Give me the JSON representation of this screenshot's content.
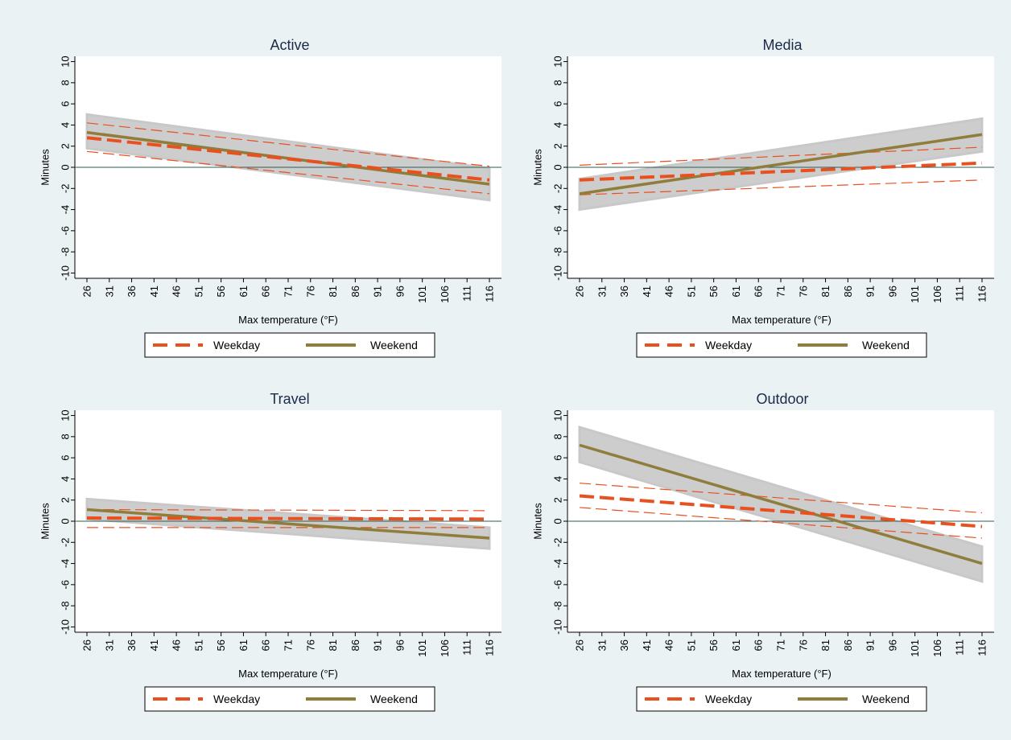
{
  "colors": {
    "figure_bg": "#eaf2f3",
    "plot_bg": "#ffffff",
    "weekday": "#e8501f",
    "weekend": "#8f7d3c",
    "ci_band": "#c8c8c8",
    "zero_line": "#2e5e52"
  },
  "chart_data": [
    {
      "type": "line",
      "title": "Active",
      "xlabel": "Max temperature (°F)",
      "ylabel": "Minutes",
      "x": [
        26,
        31,
        36,
        41,
        46,
        51,
        56,
        61,
        66,
        71,
        76,
        81,
        86,
        91,
        96,
        101,
        106,
        111,
        116
      ],
      "y_ticks": [
        -10,
        -8,
        -6,
        -4,
        -2,
        0,
        2,
        4,
        6,
        8,
        10
      ],
      "ylim": [
        -10.5,
        10.5
      ],
      "reference_line_y": 0,
      "legend": {
        "position": "bottom",
        "entries": [
          "Weekday",
          "Weekend"
        ]
      },
      "series": [
        {
          "name": "Weekday",
          "style": "dashed",
          "x_range": [
            26,
            116
          ],
          "y_range": [
            2.8,
            -1.2
          ],
          "ci_lower": [
            1.5,
            -2.5
          ],
          "ci_upper": [
            4.2,
            0.1
          ]
        },
        {
          "name": "Weekend",
          "style": "solid",
          "x_range": [
            26,
            116
          ],
          "y_range": [
            3.3,
            -1.6
          ],
          "ci_lower": [
            1.8,
            -3.1
          ],
          "ci_upper": [
            5.0,
            -0.1
          ]
        }
      ]
    },
    {
      "type": "line",
      "title": "Media",
      "xlabel": "Max temperature (°F)",
      "ylabel": "Minutes",
      "x": [
        26,
        31,
        36,
        41,
        46,
        51,
        56,
        61,
        66,
        71,
        76,
        81,
        86,
        91,
        96,
        101,
        106,
        111,
        116
      ],
      "y_ticks": [
        -10,
        -8,
        -6,
        -4,
        -2,
        0,
        2,
        4,
        6,
        8,
        10
      ],
      "ylim": [
        -10.5,
        10.5
      ],
      "reference_line_y": 0,
      "legend": {
        "position": "bottom",
        "entries": [
          "Weekday",
          "Weekend"
        ]
      },
      "series": [
        {
          "name": "Weekday",
          "style": "dashed",
          "x_range": [
            26,
            116
          ],
          "y_range": [
            -1.2,
            0.4
          ],
          "ci_lower": [
            -2.6,
            -1.2
          ],
          "ci_upper": [
            0.2,
            1.9
          ]
        },
        {
          "name": "Weekend",
          "style": "solid",
          "x_range": [
            26,
            116
          ],
          "y_range": [
            -2.5,
            3.1
          ],
          "ci_lower": [
            -4.0,
            1.5
          ],
          "ci_upper": [
            -1.1,
            4.6
          ]
        }
      ]
    },
    {
      "type": "line",
      "title": "Travel",
      "xlabel": "Max temperature (°F)",
      "ylabel": "Minutes",
      "x": [
        26,
        31,
        36,
        41,
        46,
        51,
        56,
        61,
        66,
        71,
        76,
        81,
        86,
        91,
        96,
        101,
        106,
        111,
        116
      ],
      "y_ticks": [
        -10,
        -8,
        -6,
        -4,
        -2,
        0,
        2,
        4,
        6,
        8,
        10
      ],
      "ylim": [
        -10.5,
        10.5
      ],
      "reference_line_y": 0,
      "legend": {
        "position": "bottom",
        "entries": [
          "Weekday",
          "Weekend"
        ]
      },
      "series": [
        {
          "name": "Weekday",
          "style": "dashed",
          "x_range": [
            26,
            116
          ],
          "y_range": [
            0.3,
            0.2
          ],
          "ci_lower": [
            -0.6,
            -0.6
          ],
          "ci_upper": [
            1.1,
            1.0
          ]
        },
        {
          "name": "Weekend",
          "style": "solid",
          "x_range": [
            26,
            116
          ],
          "y_range": [
            1.1,
            -1.6
          ],
          "ci_lower": [
            0.2,
            -2.6
          ],
          "ci_upper": [
            2.1,
            -0.6
          ]
        }
      ]
    },
    {
      "type": "line",
      "title": "Outdoor",
      "xlabel": "Max temperature (°F)",
      "ylabel": "Minutes",
      "x": [
        26,
        31,
        36,
        41,
        46,
        51,
        56,
        61,
        66,
        71,
        76,
        81,
        86,
        91,
        96,
        101,
        106,
        111,
        116
      ],
      "y_ticks": [
        -10,
        -8,
        -6,
        -4,
        -2,
        0,
        2,
        4,
        6,
        8,
        10
      ],
      "ylim": [
        -10.5,
        10.5
      ],
      "reference_line_y": 0,
      "legend": {
        "position": "bottom",
        "entries": [
          "Weekday",
          "Weekend"
        ]
      },
      "series": [
        {
          "name": "Weekday",
          "style": "dashed",
          "x_range": [
            26,
            116
          ],
          "y_range": [
            2.4,
            -0.5
          ],
          "ci_lower": [
            1.3,
            -1.6
          ],
          "ci_upper": [
            3.6,
            0.8
          ]
        },
        {
          "name": "Weekend",
          "style": "solid",
          "x_range": [
            26,
            116
          ],
          "y_range": [
            7.2,
            -4.0
          ],
          "ci_lower": [
            5.6,
            -5.7
          ],
          "ci_upper": [
            8.9,
            -2.4
          ]
        }
      ]
    }
  ]
}
